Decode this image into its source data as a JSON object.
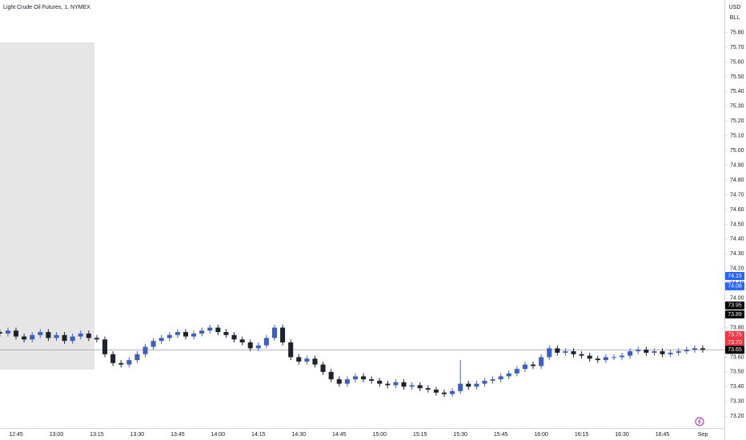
{
  "chart_data": {
    "type": "candlestick",
    "title": "Light Crude Oil Futures, 1, NYMEX",
    "currency": "USD",
    "unit_label": "BLL",
    "categories": [
      null,
      null,
      "12:45",
      null,
      null,
      null,
      null,
      "13:00",
      null,
      null,
      null,
      null,
      "13:15",
      null,
      null,
      null,
      null,
      "13:30",
      null,
      null,
      null,
      null,
      "13:45",
      null,
      null,
      null,
      null,
      "14:00",
      null,
      null,
      null,
      null,
      "14:15",
      null,
      null,
      null,
      null,
      "14:30",
      null,
      null,
      null,
      null,
      "14:45",
      null,
      null,
      null,
      null,
      "15:00",
      null,
      null,
      null,
      null,
      "15:15",
      null,
      null,
      null,
      null,
      "15:30",
      null,
      null,
      null,
      null,
      "15:45",
      null,
      null,
      null,
      null,
      "16:00",
      null,
      null,
      null,
      null,
      "16:15",
      null,
      null,
      null,
      null,
      "16:30",
      null,
      null,
      null,
      null,
      "16:45",
      null,
      null,
      null,
      null,
      "Sep"
    ],
    "open": [
      73.77,
      73.76,
      73.78,
      73.74,
      73.72,
      73.75,
      73.77,
      73.73,
      73.75,
      73.71,
      73.74,
      73.76,
      73.73,
      73.72,
      73.62,
      73.56,
      73.55,
      73.58,
      73.62,
      73.67,
      73.71,
      73.73,
      73.75,
      73.77,
      73.74,
      73.76,
      73.78,
      73.8,
      73.77,
      73.75,
      73.72,
      73.7,
      73.66,
      73.68,
      73.73,
      73.8,
      73.7,
      73.6,
      73.57,
      73.59,
      73.55,
      73.5,
      73.45,
      73.42,
      73.45,
      73.47,
      73.45,
      73.44,
      73.42,
      73.41,
      73.43,
      73.4,
      73.41,
      73.39,
      73.38,
      73.36,
      73.35,
      73.37,
      73.42,
      73.4,
      73.42,
      73.44,
      73.45,
      73.47,
      73.49,
      73.52,
      73.55,
      73.54,
      73.6,
      73.66,
      73.63,
      73.64,
      73.62,
      73.61,
      73.59,
      73.58,
      73.6,
      73.6,
      73.61,
      73.64,
      73.65,
      73.63,
      73.64,
      73.62,
      73.63,
      73.64,
      73.65,
      73.66
    ],
    "high": [
      73.79,
      73.8,
      73.8,
      73.76,
      73.77,
      73.79,
      73.79,
      73.77,
      73.77,
      73.76,
      73.78,
      73.78,
      73.75,
      73.74,
      73.64,
      73.58,
      73.6,
      73.64,
      73.69,
      73.73,
      73.75,
      73.77,
      73.79,
      73.79,
      73.78,
      73.8,
      73.82,
      73.82,
      73.79,
      73.77,
      73.74,
      73.72,
      73.7,
      73.75,
      73.82,
      73.82,
      73.72,
      73.62,
      73.61,
      73.61,
      73.57,
      73.52,
      73.47,
      73.47,
      73.49,
      73.49,
      73.47,
      73.46,
      73.44,
      73.45,
      73.45,
      73.43,
      73.43,
      73.41,
      73.4,
      73.38,
      73.39,
      73.58,
      73.44,
      73.44,
      73.46,
      73.47,
      73.49,
      73.51,
      73.54,
      73.57,
      73.57,
      73.62,
      73.68,
      73.68,
      73.66,
      73.66,
      73.64,
      73.63,
      73.61,
      73.62,
      73.62,
      73.63,
      73.66,
      73.67,
      73.67,
      73.66,
      73.66,
      73.65,
      73.66,
      73.67,
      73.68,
      73.68
    ],
    "low": [
      73.74,
      73.74,
      73.72,
      73.7,
      73.7,
      73.73,
      73.71,
      73.71,
      73.69,
      73.69,
      73.72,
      73.71,
      73.7,
      73.6,
      73.54,
      73.53,
      73.53,
      73.56,
      73.6,
      73.65,
      73.69,
      73.71,
      73.73,
      73.72,
      73.72,
      73.74,
      73.76,
      73.75,
      73.73,
      73.7,
      73.68,
      73.64,
      73.64,
      73.66,
      73.71,
      73.68,
      73.58,
      73.55,
      73.55,
      73.53,
      73.48,
      73.43,
      73.4,
      73.4,
      73.43,
      73.43,
      73.42,
      73.4,
      73.39,
      73.39,
      73.38,
      73.38,
      73.37,
      73.36,
      73.34,
      73.33,
      73.33,
      73.35,
      73.38,
      73.38,
      73.4,
      73.42,
      73.43,
      73.45,
      73.47,
      73.5,
      73.52,
      73.52,
      73.58,
      73.61,
      73.61,
      73.6,
      73.59,
      73.57,
      73.56,
      73.56,
      73.58,
      73.58,
      73.59,
      73.62,
      73.61,
      73.61,
      73.6,
      73.6,
      73.61,
      73.62,
      73.63,
      73.63
    ],
    "close": [
      73.76,
      73.78,
      73.74,
      73.72,
      73.75,
      73.77,
      73.73,
      73.75,
      73.71,
      73.74,
      73.76,
      73.73,
      73.72,
      73.62,
      73.56,
      73.55,
      73.58,
      73.62,
      73.67,
      73.71,
      73.73,
      73.75,
      73.77,
      73.74,
      73.76,
      73.78,
      73.8,
      73.77,
      73.75,
      73.72,
      73.7,
      73.66,
      73.68,
      73.73,
      73.8,
      73.7,
      73.6,
      73.57,
      73.59,
      73.55,
      73.5,
      73.45,
      73.42,
      73.45,
      73.47,
      73.45,
      73.44,
      73.42,
      73.41,
      73.43,
      73.4,
      73.41,
      73.39,
      73.38,
      73.36,
      73.35,
      73.37,
      73.42,
      73.4,
      73.42,
      73.44,
      73.45,
      73.47,
      73.49,
      73.52,
      73.55,
      73.54,
      73.6,
      73.66,
      73.63,
      73.64,
      73.62,
      73.61,
      73.59,
      73.58,
      73.6,
      73.6,
      73.61,
      73.64,
      73.65,
      73.63,
      73.64,
      73.62,
      73.63,
      73.64,
      73.65,
      73.66,
      73.65
    ],
    "up_color": "#3d5fc4",
    "down_color": "#1e222d",
    "ylim": [
      73.12,
      76.02
    ],
    "yticks": [
      {
        "value": 73.2,
        "label": "73.20"
      },
      {
        "value": 73.3,
        "label": "73.30"
      },
      {
        "value": 73.4,
        "label": "73.40"
      },
      {
        "value": 73.5,
        "label": "73.50"
      },
      {
        "value": 73.6,
        "label": "73.60"
      },
      {
        "value": 73.7,
        "label": "73.70"
      },
      {
        "value": 73.8,
        "label": "73.80"
      },
      {
        "value": 73.9,
        "label": "73.90"
      },
      {
        "value": 74.0,
        "label": "74.00"
      },
      {
        "value": 74.1,
        "label": "74.10"
      },
      {
        "value": 74.2,
        "label": "74.20"
      },
      {
        "value": 74.3,
        "label": "74.30"
      },
      {
        "value": 74.4,
        "label": "74.40"
      },
      {
        "value": 74.5,
        "label": "74.50"
      },
      {
        "value": 74.6,
        "label": "74.60"
      },
      {
        "value": 74.7,
        "label": "74.70"
      },
      {
        "value": 74.8,
        "label": "74.80"
      },
      {
        "value": 74.9,
        "label": "74.90"
      },
      {
        "value": 75.0,
        "label": "75.00"
      },
      {
        "value": 75.1,
        "label": "75.10"
      },
      {
        "value": 75.2,
        "label": "75.20"
      },
      {
        "value": 75.3,
        "label": "75.30"
      },
      {
        "value": 75.4,
        "label": "75.40"
      },
      {
        "value": 75.5,
        "label": "75.50"
      },
      {
        "value": 75.6,
        "label": "75.60"
      },
      {
        "value": 75.7,
        "label": "75.70"
      },
      {
        "value": 75.8,
        "label": "75.80"
      }
    ],
    "price_labels": [
      {
        "value": 74.15,
        "label": "74.15",
        "color": "#2962ff"
      },
      {
        "value": 74.08,
        "label": "74.08",
        "color": "#2962ff"
      },
      {
        "value": 73.95,
        "label": "73.95",
        "color": "#000000"
      },
      {
        "value": 73.89,
        "label": "73.89",
        "color": "#000000"
      },
      {
        "value": 73.75,
        "label": "73.75",
        "color": "#f23645"
      },
      {
        "value": 73.7,
        "label": "73.70",
        "color": "#f23645"
      },
      {
        "value": 73.65,
        "label": "73.65",
        "color": "#000000"
      }
    ],
    "grid": false
  }
}
